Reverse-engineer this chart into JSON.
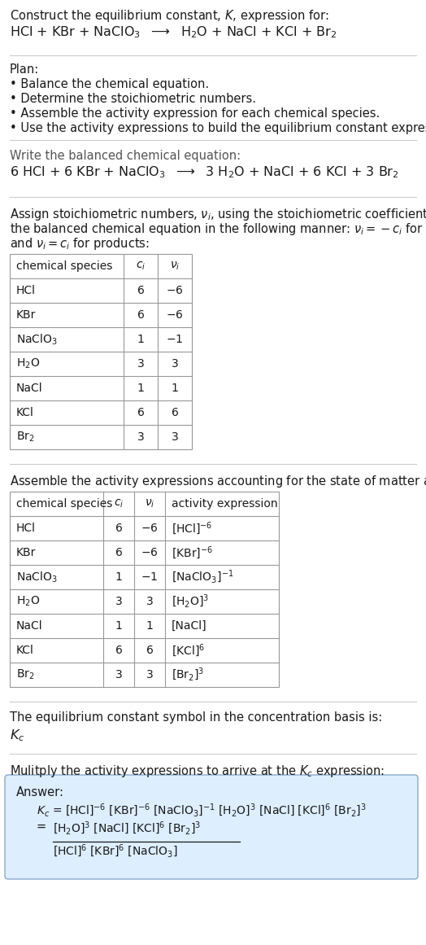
{
  "bg_color": "#ffffff",
  "text_color": "#1a1a1a",
  "gray_text": "#555555",
  "table_border_color": "#999999",
  "answer_box_color": "#ddeeff",
  "answer_box_border": "#88aacc",
  "hr_color": "#cccccc",
  "section1_title": "Construct the equilibrium constant, $K$, expression for:",
  "section1_equation": "HCl + KBr + NaClO$_3$  $\\longrightarrow$  H$_2$O + NaCl + KCl + Br$_2$",
  "plan_title": "Plan:",
  "plan_items": [
    "• Balance the chemical equation.",
    "• Determine the stoichiometric numbers.",
    "• Assemble the activity expression for each chemical species.",
    "• Use the activity expressions to build the equilibrium constant expression."
  ],
  "balanced_title": "Write the balanced chemical equation:",
  "balanced_equation": "6 HCl + 6 KBr + NaClO$_3$  $\\longrightarrow$  3 H$_2$O + NaCl + 6 KCl + 3 Br$_2$",
  "stoich_intro_lines": [
    "Assign stoichiometric numbers, $\\nu_i$, using the stoichiometric coefficients, $c_i$, from",
    "the balanced chemical equation in the following manner: $\\nu_i = -c_i$ for reactants",
    "and $\\nu_i = c_i$ for products:"
  ],
  "table1_headers": [
    "chemical species",
    "$c_i$",
    "$\\nu_i$"
  ],
  "table1_rows": [
    [
      "HCl",
      "6",
      "$-$6"
    ],
    [
      "KBr",
      "6",
      "$-$6"
    ],
    [
      "NaClO$_3$",
      "1",
      "$-$1"
    ],
    [
      "H$_2$O",
      "3",
      "3"
    ],
    [
      "NaCl",
      "1",
      "1"
    ],
    [
      "KCl",
      "6",
      "6"
    ],
    [
      "Br$_2$",
      "3",
      "3"
    ]
  ],
  "activity_intro": "Assemble the activity expressions accounting for the state of matter and $\\nu_i$:",
  "table2_headers": [
    "chemical species",
    "$c_i$",
    "$\\nu_i$",
    "activity expression"
  ],
  "table2_rows": [
    [
      "HCl",
      "6",
      "$-$6",
      "[HCl]$^{-6}$"
    ],
    [
      "KBr",
      "6",
      "$-$6",
      "[KBr]$^{-6}$"
    ],
    [
      "NaClO$_3$",
      "1",
      "$-$1",
      "[NaClO$_3$]$^{-1}$"
    ],
    [
      "H$_2$O",
      "3",
      "3",
      "[H$_2$O]$^3$"
    ],
    [
      "NaCl",
      "1",
      "1",
      "[NaCl]"
    ],
    [
      "KCl",
      "6",
      "6",
      "[KCl]$^6$"
    ],
    [
      "Br$_2$",
      "3",
      "3",
      "[Br$_2$]$^3$"
    ]
  ],
  "kc_intro": "The equilibrium constant symbol in the concentration basis is:",
  "kc_symbol": "$K_c$",
  "multiply_intro": "Mulitply the activity expressions to arrive at the $K_c$ expression:",
  "answer_label": "Answer:",
  "answer_line1": "$K_c$ = [HCl]$^{-6}$ [KBr]$^{-6}$ [NaClO$_3$]$^{-1}$ [H$_2$O]$^3$ [NaCl] [KCl]$^6$ [Br$_2$]$^3$",
  "answer_eq_sign": "=",
  "answer_numerator": "[H$_2$O]$^3$ [NaCl] [KCl]$^6$ [Br$_2$]$^3$",
  "answer_denominator": "[HCl]$^6$ [KBr]$^6$ [NaClO$_3$]"
}
